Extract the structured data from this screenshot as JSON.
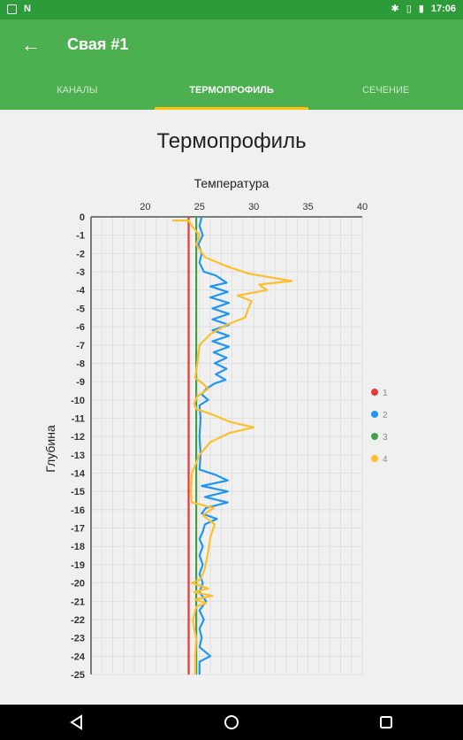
{
  "status_bar": {
    "time": "17:06"
  },
  "app_bar": {
    "title": "Свая #1"
  },
  "tabs": [
    {
      "label": "КАНАЛЫ",
      "active": false
    },
    {
      "label": "ТЕРМОПРОФИЛЬ",
      "active": true
    },
    {
      "label": "СЕЧЕНИЕ",
      "active": false
    }
  ],
  "colors": {
    "status_bar": "#2e9b3b",
    "app_bar": "#4caf50",
    "tab_indicator": "#ffc107",
    "series1": "#e53935",
    "series2": "#2196f3",
    "series3": "#43a047",
    "series4": "#fbc02d"
  },
  "chart_data": {
    "type": "line",
    "title": "Термопрофиль",
    "xlabel": "Температура",
    "ylabel": "Глубина",
    "xlim": [
      15,
      40
    ],
    "ylim": [
      -25,
      0
    ],
    "x_ticks": [
      20,
      25,
      30,
      35,
      40
    ],
    "y_ticks": [
      0,
      -1,
      -2,
      -3,
      -4,
      -5,
      -6,
      -7,
      -8,
      -9,
      -10,
      -11,
      -12,
      -13,
      -14,
      -15,
      -16,
      -17,
      -18,
      -19,
      -20,
      -21,
      -22,
      -23,
      -24,
      -25
    ],
    "x_axis_position": "top",
    "grid": true,
    "legend_position": "right",
    "series": [
      {
        "name": "1",
        "color": "#e53935",
        "points": [
          [
            24.0,
            0
          ],
          [
            24.0,
            -25
          ]
        ]
      },
      {
        "name": "2",
        "color": "#2196f3",
        "points": [
          [
            25.2,
            0
          ],
          [
            25.0,
            -0.5
          ],
          [
            25.3,
            -1
          ],
          [
            24.9,
            -1.5
          ],
          [
            25.2,
            -2
          ],
          [
            25.0,
            -2.5
          ],
          [
            25.4,
            -3
          ],
          [
            26.5,
            -3.2
          ],
          [
            27.5,
            -3.6
          ],
          [
            26.0,
            -3.8
          ],
          [
            27.6,
            -4.1
          ],
          [
            26.0,
            -4.4
          ],
          [
            27.7,
            -4.7
          ],
          [
            26.2,
            -5.0
          ],
          [
            27.7,
            -5.3
          ],
          [
            26.2,
            -5.6
          ],
          [
            27.7,
            -5.9
          ],
          [
            26.2,
            -6.2
          ],
          [
            27.7,
            -6.5
          ],
          [
            26.2,
            -6.8
          ],
          [
            27.7,
            -7.1
          ],
          [
            26.3,
            -7.4
          ],
          [
            27.5,
            -7.7
          ],
          [
            26.4,
            -8.0
          ],
          [
            27.5,
            -8.3
          ],
          [
            26.5,
            -8.6
          ],
          [
            27.4,
            -8.9
          ],
          [
            26.4,
            -9.1
          ],
          [
            25.6,
            -9.4
          ],
          [
            25.2,
            -9.7
          ],
          [
            25.8,
            -10
          ],
          [
            25.0,
            -10.3
          ],
          [
            25.1,
            -11
          ],
          [
            25.0,
            -12
          ],
          [
            25.1,
            -13
          ],
          [
            25.0,
            -13.8
          ],
          [
            26.5,
            -14.1
          ],
          [
            27.6,
            -14.4
          ],
          [
            25.2,
            -14.7
          ],
          [
            27.6,
            -15.0
          ],
          [
            25.5,
            -15.3
          ],
          [
            27.6,
            -15.6
          ],
          [
            25.6,
            -15.9
          ],
          [
            25.2,
            -16.2
          ],
          [
            26.6,
            -16.5
          ],
          [
            25.5,
            -16.8
          ],
          [
            25.3,
            -17.2
          ],
          [
            25.0,
            -17.6
          ],
          [
            25.3,
            -18
          ],
          [
            25.0,
            -18.5
          ],
          [
            25.3,
            -19
          ],
          [
            25.0,
            -19.5
          ],
          [
            25.3,
            -20
          ],
          [
            25.0,
            -20.5
          ],
          [
            25.6,
            -21
          ],
          [
            25.0,
            -21.5
          ],
          [
            25.4,
            -22
          ],
          [
            25.0,
            -22.5
          ],
          [
            25.2,
            -23
          ],
          [
            25.0,
            -23.5
          ],
          [
            25.6,
            -23.8
          ],
          [
            26.0,
            -24.0
          ],
          [
            25.0,
            -24.3
          ],
          [
            25.0,
            -25
          ]
        ]
      },
      {
        "name": "3",
        "color": "#43a047",
        "points": [
          [
            24.7,
            0
          ],
          [
            24.7,
            -25
          ]
        ]
      },
      {
        "name": "4",
        "color": "#fbc02d",
        "points": [
          [
            22.5,
            -0.2
          ],
          [
            24.0,
            -0.2
          ],
          [
            24.3,
            -0.5
          ],
          [
            25.0,
            -1
          ],
          [
            24.7,
            -1.5
          ],
          [
            25.5,
            -2.2
          ],
          [
            27.5,
            -2.7
          ],
          [
            29.5,
            -3.1
          ],
          [
            33.5,
            -3.5
          ],
          [
            30.5,
            -3.7
          ],
          [
            31.2,
            -4.0
          ],
          [
            28.5,
            -4.3
          ],
          [
            29.8,
            -4.6
          ],
          [
            29.5,
            -5.0
          ],
          [
            29.2,
            -5.5
          ],
          [
            27.5,
            -5.9
          ],
          [
            26.0,
            -6.4
          ],
          [
            25.0,
            -7.0
          ],
          [
            24.8,
            -8.0
          ],
          [
            24.6,
            -8.8
          ],
          [
            25.3,
            -9.1
          ],
          [
            25.8,
            -9.4
          ],
          [
            24.8,
            -9.8
          ],
          [
            24.5,
            -10.2
          ],
          [
            24.7,
            -10.5
          ],
          [
            26.2,
            -10.8
          ],
          [
            27.8,
            -11.2
          ],
          [
            30.0,
            -11.5
          ],
          [
            27.8,
            -11.8
          ],
          [
            26.0,
            -12.3
          ],
          [
            25.0,
            -13.0
          ],
          [
            24.3,
            -14.0
          ],
          [
            24.2,
            -15.0
          ],
          [
            24.3,
            -15.6
          ],
          [
            26.3,
            -15.9
          ],
          [
            25.3,
            -16.3
          ],
          [
            26.4,
            -16.8
          ],
          [
            26.0,
            -17.5
          ],
          [
            25.8,
            -18.3
          ],
          [
            25.5,
            -19.2
          ],
          [
            25.1,
            -19.8
          ],
          [
            24.3,
            -20.0
          ],
          [
            25.8,
            -20.3
          ],
          [
            24.5,
            -20.5
          ],
          [
            26.2,
            -20.7
          ],
          [
            24.6,
            -20.9
          ],
          [
            25.6,
            -21.1
          ],
          [
            24.7,
            -21.3
          ],
          [
            24.4,
            -22.0
          ],
          [
            24.5,
            -22.5
          ],
          [
            24.7,
            -23.0
          ],
          [
            24.6,
            -24.0
          ],
          [
            24.6,
            -25
          ]
        ]
      }
    ]
  }
}
